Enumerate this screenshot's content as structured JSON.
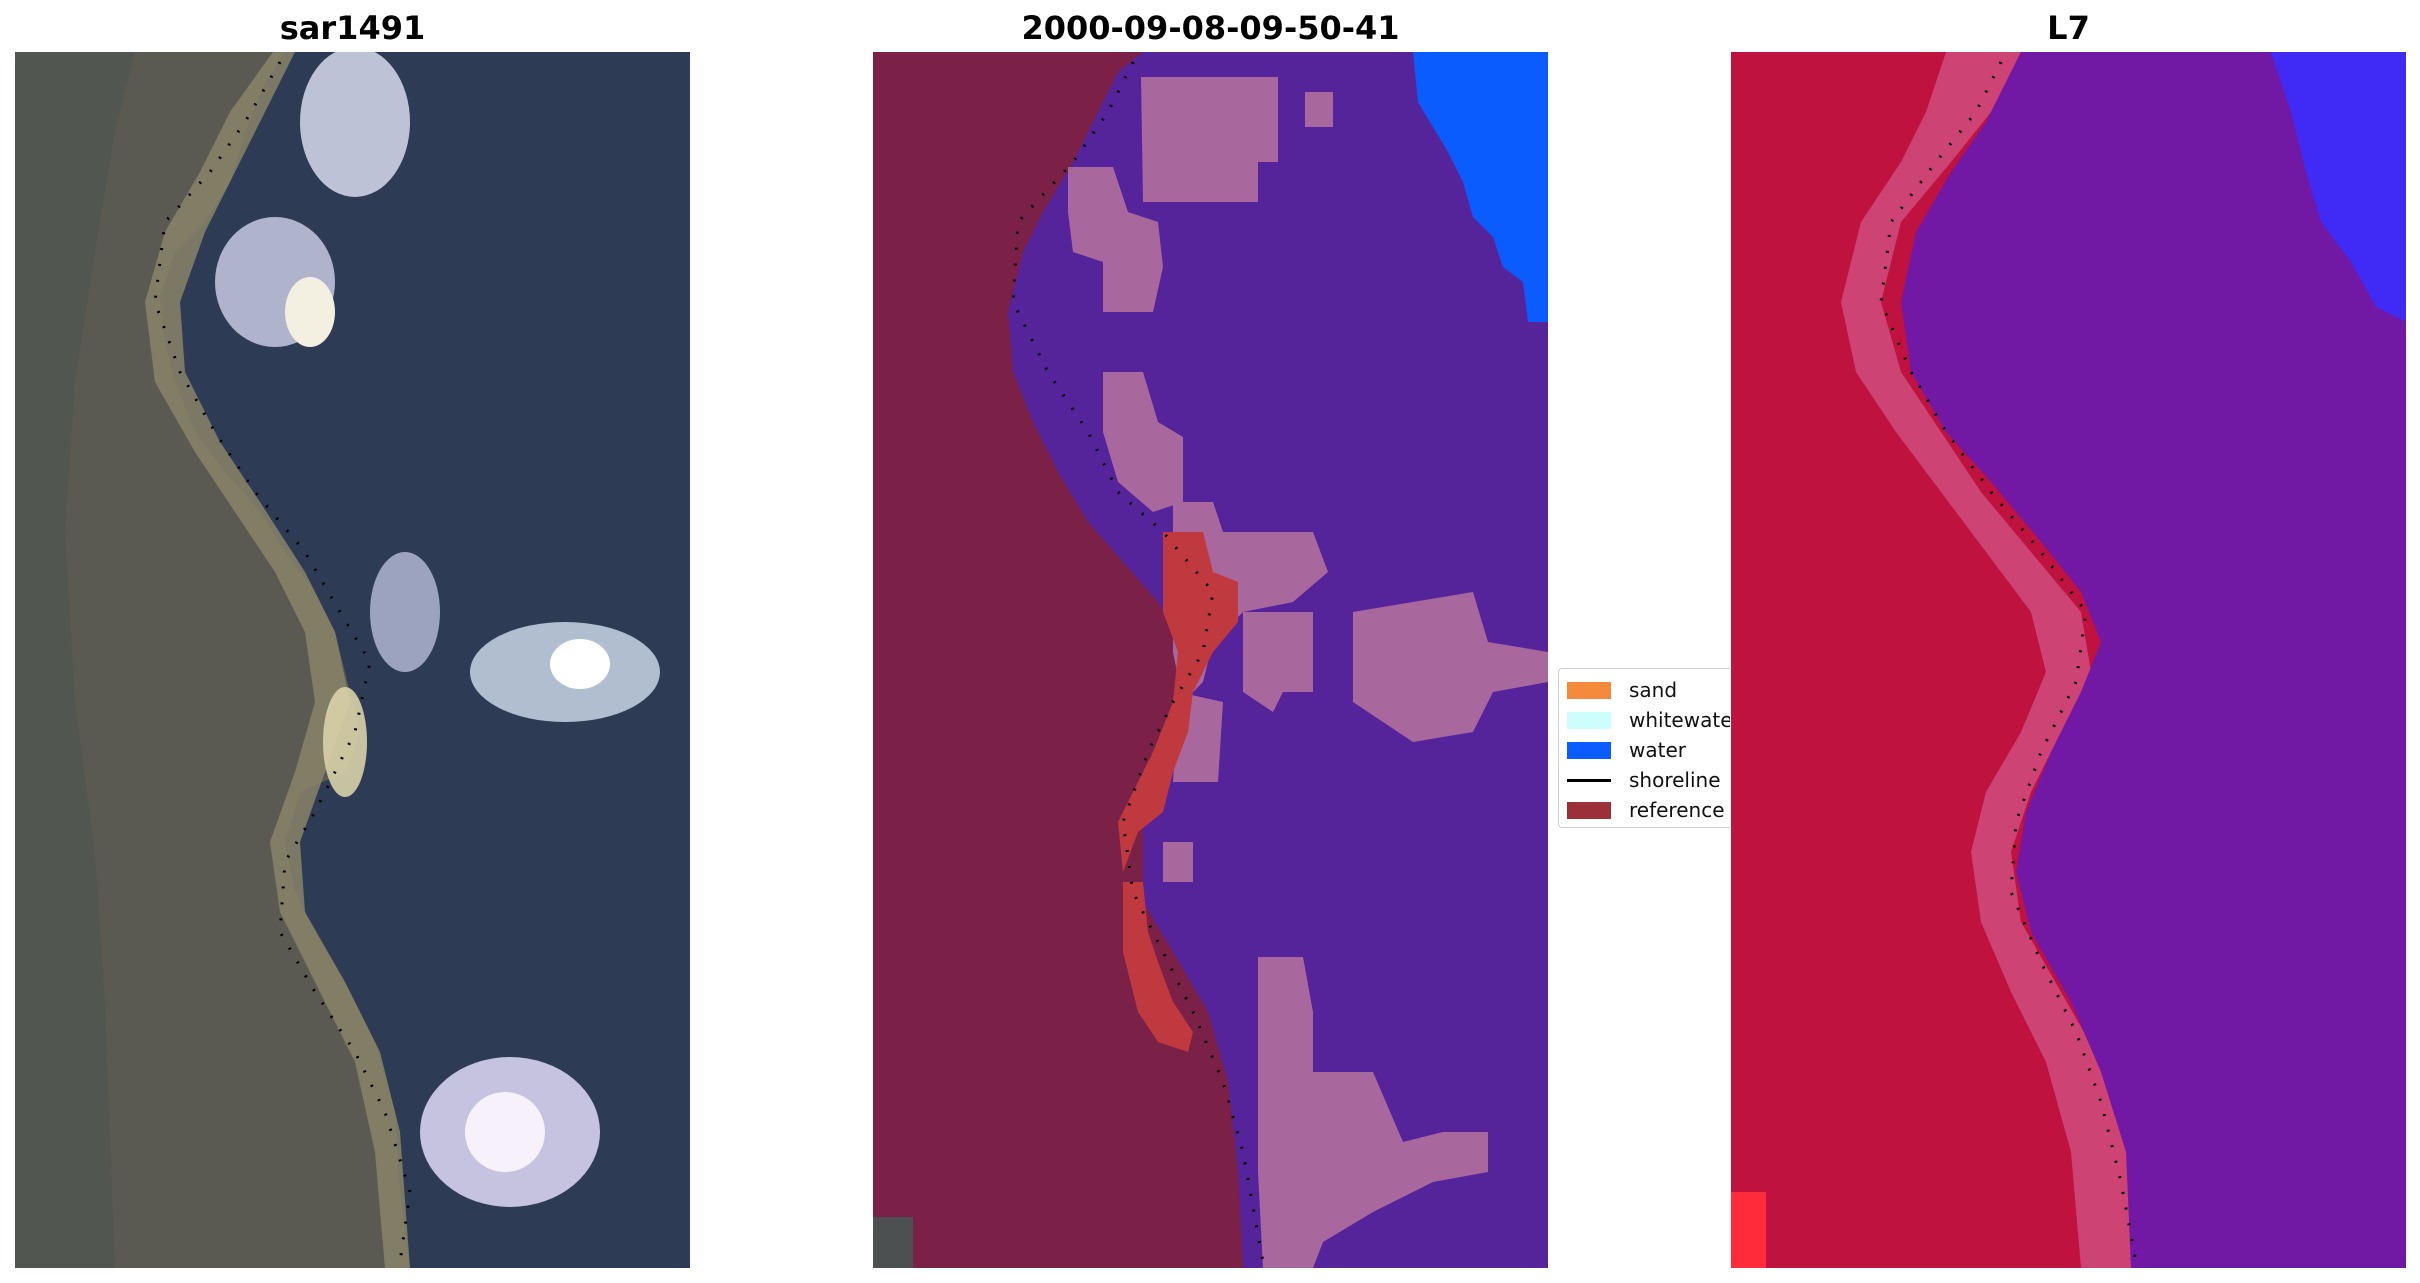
{
  "panels": [
    {
      "title": "sar1491"
    },
    {
      "title": "2000-09-08-09-50-41"
    },
    {
      "title": "L7"
    }
  ],
  "legend": {
    "items": [
      {
        "label": "sand",
        "color": "#f58a3c",
        "kind": "patch"
      },
      {
        "label": "whitewate",
        "color": "#cdfdfc",
        "kind": "patch"
      },
      {
        "label": "water",
        "color": "#0b5cff",
        "kind": "patch"
      },
      {
        "label": "shoreline",
        "color": "#000000",
        "kind": "line"
      },
      {
        "label": "reference",
        "color": "#9c3038",
        "kind": "patch"
      }
    ]
  },
  "colors": {
    "rgb_land": "#5d5a50",
    "rgb_water": "#2c3a55",
    "rgb_whitewater": "#d9dbf0",
    "class_land": "#7c2048",
    "class_water_overlay": "#55239a",
    "class_whitewater_overlay": "#a8689d",
    "class_water": "#0b5cff",
    "class_reference": "#c0393f",
    "false_color_land": "#c0123e",
    "false_color_water": "#7118a4",
    "false_color_deep_water": "#3a2cff"
  }
}
